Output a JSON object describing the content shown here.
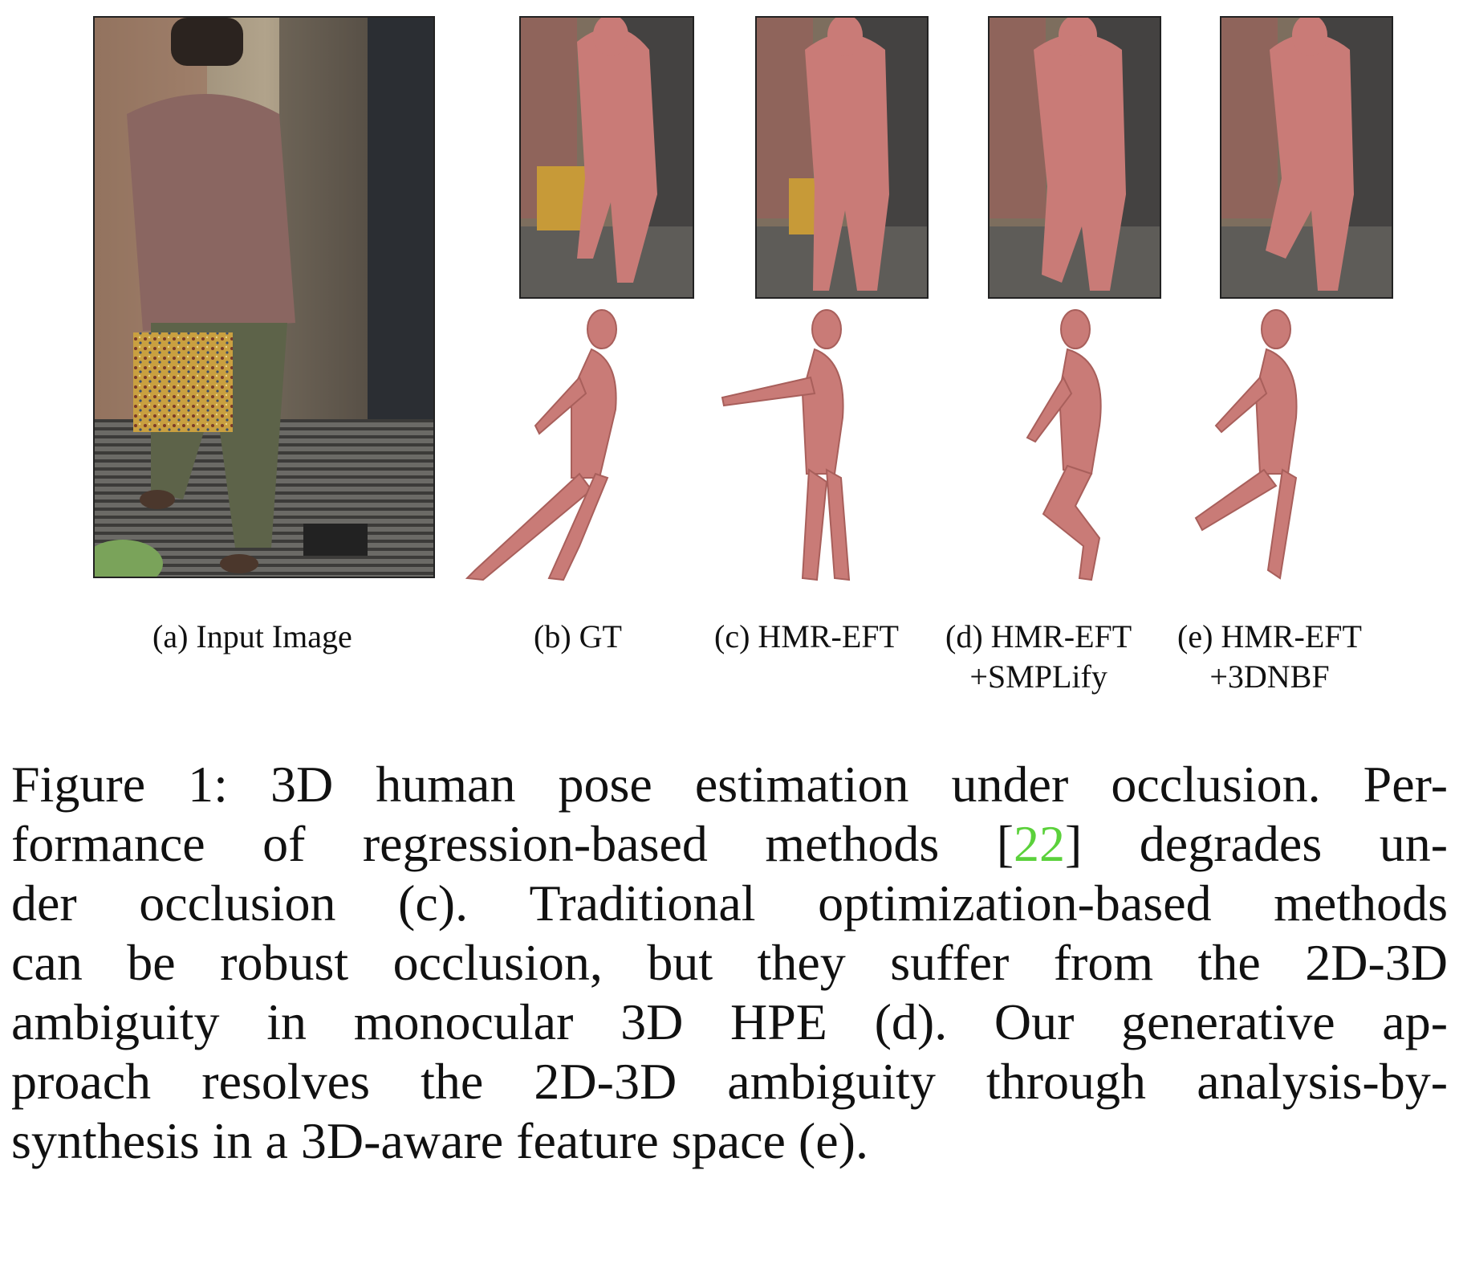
{
  "panels": {
    "a": {
      "label": "(a) Input Image"
    },
    "b": {
      "label": "(b) GT"
    },
    "c": {
      "label": "(c) HMR-EFT"
    },
    "d": {
      "label_line1": "(d) HMR-EFT",
      "label_line2": "+SMPLify"
    },
    "e": {
      "label_line1": "(e) HMR-EFT",
      "label_line2": "+3DNBF"
    }
  },
  "caption": {
    "l1": "Figure 1: 3D human pose estimation under occlusion. Per-",
    "l2_pre": "formance of regression-based methods [",
    "cite": "22",
    "l2_post": "] degrades un-",
    "l3": "der occlusion (c). Traditional optimization-based methods",
    "l4": "can be robust occlusion, but they suffer from the 2D-3D",
    "l5": "ambiguity in monocular 3D HPE (d). Our generative ap-",
    "l6": "proach resolves the 2D-3D ambiguity through analysis-by-",
    "l7": "synthesis in a 3D-aware feature space (e)."
  },
  "colors": {
    "mesh": "#c97b77",
    "cite": "#5bd13b"
  }
}
